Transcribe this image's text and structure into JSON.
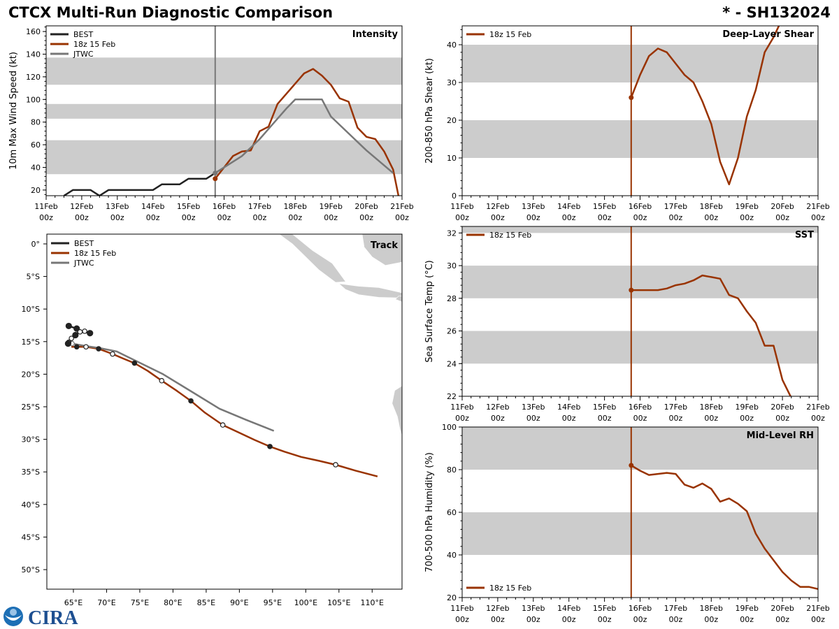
{
  "header": {
    "title": "CTCX Multi-Run Diagnostic Comparison",
    "storm_id": "* - SH132024"
  },
  "colors": {
    "best": "#222222",
    "run": "#993300",
    "jtwc": "#777777",
    "band": "#cccccc",
    "land": "#cccccc"
  },
  "time_ticks": [
    {
      "d": 0,
      "l1": "11Feb",
      "l2": "00z"
    },
    {
      "d": 1,
      "l1": "12Feb",
      "l2": "00z"
    },
    {
      "d": 2,
      "l1": "13Feb",
      "l2": "00z"
    },
    {
      "d": 3,
      "l1": "14Feb",
      "l2": "00z"
    },
    {
      "d": 4,
      "l1": "15Feb",
      "l2": "00z"
    },
    {
      "d": 5,
      "l1": "16Feb",
      "l2": "00z"
    },
    {
      "d": 6,
      "l1": "17Feb",
      "l2": "00z"
    },
    {
      "d": 7,
      "l1": "18Feb",
      "l2": "00z"
    },
    {
      "d": 8,
      "l1": "19Feb",
      "l2": "00z"
    },
    {
      "d": 9,
      "l1": "20Feb",
      "l2": "00z"
    },
    {
      "d": 10,
      "l1": "21Feb",
      "l2": "00z"
    }
  ],
  "legend": {
    "best": "BEST",
    "run": "18z 15 Feb",
    "jtwc": "JTWC"
  },
  "logo": {
    "text": "CIRA"
  },
  "chart_data": [
    {
      "id": "intensity",
      "type": "line",
      "title": "Intensity",
      "xlabel": "",
      "ylabel": "10m Max Wind Speed (kt)",
      "xlim_days": [
        0,
        10
      ],
      "ylim": [
        15,
        165
      ],
      "yticks": [
        20,
        40,
        60,
        80,
        100,
        120,
        140,
        160
      ],
      "bands": [
        [
          34,
          64
        ],
        [
          83,
          96
        ],
        [
          113,
          137
        ]
      ],
      "init_day": 4.75,
      "init_line_color": "#777777",
      "legend_loc": "top-left",
      "series": [
        {
          "name": "BEST",
          "key": "best",
          "x": [
            0.5,
            0.75,
            1.0,
            1.25,
            1.5,
            1.75,
            2.0,
            2.25,
            2.5,
            2.75,
            3.0,
            3.25,
            3.5,
            3.75,
            4.0,
            4.25,
            4.5,
            4.75
          ],
          "y": [
            15,
            20,
            20,
            20,
            15,
            20,
            20,
            20,
            20,
            20,
            20,
            25,
            25,
            25,
            30,
            30,
            30,
            35
          ]
        },
        {
          "name": "18z 15 Feb",
          "key": "run",
          "x": [
            4.75,
            5.0,
            5.25,
            5.5,
            5.75,
            6.0,
            6.25,
            6.5,
            6.75,
            7.0,
            7.25,
            7.5,
            7.75,
            8.0,
            8.25,
            8.5,
            8.75,
            9.0,
            9.25,
            9.5,
            9.75,
            9.9
          ],
          "y": [
            30,
            40,
            50,
            54,
            55,
            72,
            76,
            96,
            105,
            114,
            123,
            127,
            121,
            113,
            101,
            98,
            75,
            67,
            65,
            54,
            38,
            15
          ]
        },
        {
          "name": "JTWC",
          "key": "jtwc",
          "x": [
            4.75,
            5.5,
            6.0,
            6.5,
            6.75,
            7.0,
            7.5,
            7.75,
            8.0,
            8.5,
            9.0,
            9.75
          ],
          "y": [
            35,
            50,
            65,
            83,
            92,
            100,
            100,
            100,
            85,
            70,
            55,
            35
          ]
        }
      ]
    },
    {
      "id": "shear",
      "type": "line",
      "title": "Deep-Layer Shear",
      "ylabel": "200-850 hPa Shear (kt)",
      "xlim_days": [
        0,
        10
      ],
      "ylim": [
        0,
        45
      ],
      "yticks": [
        0,
        10,
        20,
        30,
        40
      ],
      "bands": [
        [
          10,
          20
        ],
        [
          30,
          40
        ]
      ],
      "init_day": 4.75,
      "init_line_color": "#993300",
      "legend_loc": "top-left",
      "series": [
        {
          "name": "18z 15 Feb",
          "key": "run",
          "x": [
            4.75,
            5.0,
            5.25,
            5.5,
            5.75,
            6.0,
            6.25,
            6.5,
            6.75,
            7.0,
            7.25,
            7.5,
            7.75,
            8.0,
            8.25,
            8.5,
            8.75,
            9.0
          ],
          "y": [
            26,
            32,
            37,
            39,
            38,
            35,
            32,
            30,
            25,
            19,
            9,
            3,
            10,
            21,
            28,
            38,
            42,
            47
          ]
        }
      ]
    },
    {
      "id": "sst",
      "type": "line",
      "title": "SST",
      "ylabel": "Sea Surface Temp (°C)",
      "xlim_days": [
        0,
        10
      ],
      "ylim": [
        22,
        32.4
      ],
      "yticks": [
        22,
        24,
        26,
        28,
        30,
        32
      ],
      "bands": [
        [
          24,
          26
        ],
        [
          28,
          30
        ],
        [
          32,
          34
        ]
      ],
      "init_day": 4.75,
      "init_line_color": "#993300",
      "legend_loc": "top-left",
      "series": [
        {
          "name": "18z 15 Feb",
          "key": "run",
          "x": [
            4.75,
            5.0,
            5.25,
            5.5,
            5.75,
            6.0,
            6.25,
            6.5,
            6.75,
            7.0,
            7.25,
            7.5,
            7.75,
            8.0,
            8.25,
            8.5,
            8.75,
            9.0,
            9.25
          ],
          "y": [
            28.5,
            28.5,
            28.5,
            28.5,
            28.6,
            28.8,
            28.9,
            29.1,
            29.4,
            29.3,
            29.2,
            28.2,
            28.0,
            27.2,
            26.5,
            25.1,
            25.1,
            23.0,
            21.9
          ]
        }
      ]
    },
    {
      "id": "rh",
      "type": "line",
      "title": "Mid-Level RH",
      "ylabel": "700-500 hPa Humidity (%)",
      "xlim_days": [
        0,
        10
      ],
      "ylim": [
        20,
        100
      ],
      "yticks": [
        20,
        40,
        60,
        80,
        100
      ],
      "bands": [
        [
          40,
          60
        ],
        [
          80,
          100
        ]
      ],
      "init_day": 4.75,
      "init_line_color": "#993300",
      "legend_loc": "bottom-left",
      "series": [
        {
          "name": "18z 15 Feb",
          "key": "run",
          "x": [
            4.75,
            5.0,
            5.25,
            5.5,
            5.75,
            6.0,
            6.25,
            6.5,
            6.75,
            7.0,
            7.25,
            7.5,
            7.75,
            8.0,
            8.25,
            8.5,
            8.75,
            9.0,
            9.25,
            9.5,
            9.75,
            10.0
          ],
          "y": [
            82,
            79.5,
            77.5,
            78,
            78.5,
            78,
            73,
            71.5,
            73.5,
            71,
            65,
            66.5,
            64,
            60.5,
            50,
            43,
            37.5,
            32,
            28,
            25,
            25,
            24
          ]
        }
      ]
    },
    {
      "id": "track",
      "type": "line",
      "title": "Track",
      "xlim_lon": [
        61,
        114.5
      ],
      "ylim_lat": [
        -53,
        1.5
      ],
      "xticks": [
        {
          "v": 65,
          "l": "65°E"
        },
        {
          "v": 70,
          "l": "70°E"
        },
        {
          "v": 75,
          "l": "75°E"
        },
        {
          "v": 80,
          "l": "80°E"
        },
        {
          "v": 85,
          "l": "85°E"
        },
        {
          "v": 90,
          "l": "90°E"
        },
        {
          "v": 95,
          "l": "95°E"
        },
        {
          "v": 100,
          "l": "100°E"
        },
        {
          "v": 105,
          "l": "105°E"
        },
        {
          "v": 110,
          "l": "110°E"
        }
      ],
      "yticks": [
        {
          "v": 0,
          "l": "0°"
        },
        {
          "v": -5,
          "l": "5°S"
        },
        {
          "v": -10,
          "l": "10°S"
        },
        {
          "v": -15,
          "l": "15°S"
        },
        {
          "v": -20,
          "l": "20°S"
        },
        {
          "v": -25,
          "l": "25°S"
        },
        {
          "v": -30,
          "l": "30°S"
        },
        {
          "v": -35,
          "l": "35°S"
        },
        {
          "v": -40,
          "l": "40°S"
        },
        {
          "v": -45,
          "l": "45°S"
        },
        {
          "v": -50,
          "l": "50°S"
        }
      ],
      "legend_loc": "top-left",
      "series": [
        {
          "name": "BEST",
          "key": "best",
          "lon": [
            64.3,
            65.5,
            66.0,
            66.7,
            67.5,
            66.6,
            65.8,
            65.3,
            64.7,
            64.3,
            64.2,
            64.4,
            64.6
          ],
          "lat": [
            -12.6,
            -13.0,
            -13.5,
            -13.4,
            -13.7,
            -13.5,
            -13.5,
            -14.0,
            -14.5,
            -15.1,
            -15.3,
            -15.3,
            -15.2
          ],
          "markers": [
            "filled",
            "filled",
            "open",
            "open",
            "filled",
            "none",
            "none",
            "filled",
            "open",
            "open",
            "filled",
            "none",
            "none"
          ]
        },
        {
          "name": "18z 15 Feb",
          "key": "run",
          "lon": [
            64.7,
            65.5,
            66.9,
            68.8,
            70.9,
            72.5,
            74.2,
            76.2,
            78.3,
            80.5,
            82.7,
            84.8,
            87.5,
            90.0,
            92.3,
            94.6,
            96.8,
            99.3,
            102.0,
            104.5,
            107.5,
            110.8
          ],
          "lat": [
            -15.8,
            -15.8,
            -15.8,
            -16.1,
            -16.9,
            -17.6,
            -18.3,
            -19.5,
            -21.0,
            -22.5,
            -24.1,
            -25.9,
            -27.8,
            -29.0,
            -30.1,
            -31.1,
            -31.9,
            -32.7,
            -33.3,
            -33.9,
            -34.8,
            -35.7
          ],
          "markers": [
            "none",
            "filled",
            "open",
            "filled",
            "open",
            "none",
            "filled",
            "none",
            "open",
            "none",
            "filled",
            "none",
            "open",
            "none",
            "none",
            "filled",
            "none",
            "none",
            "none",
            "open",
            "none",
            "none"
          ]
        },
        {
          "name": "JTWC",
          "key": "jtwc",
          "lon": [
            64.8,
            67.0,
            69.0,
            71.5,
            74.5,
            78.5,
            83.0,
            87.0,
            91.0,
            95.2
          ],
          "lat": [
            -15.3,
            -15.7,
            -16.0,
            -16.5,
            -18.0,
            -20.0,
            -22.8,
            -25.3,
            -27.0,
            -28.7
          ],
          "markers": [
            "open",
            "none",
            "none",
            "none",
            "none",
            "none",
            "none",
            "none",
            "none",
            "none"
          ]
        }
      ]
    }
  ]
}
